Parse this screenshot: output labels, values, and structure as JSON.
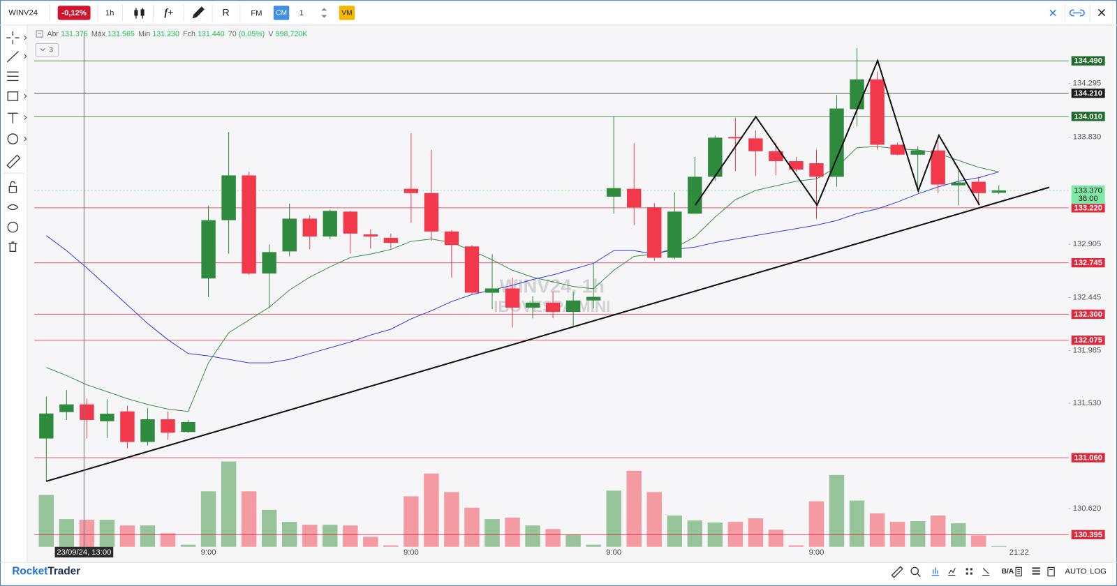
{
  "toolbar": {
    "symbol": "WINV24",
    "change": "-0,12%",
    "interval": "1h",
    "studies": "f+",
    "order_type": "R",
    "fm": "FM",
    "cm": "CM",
    "quantity": "1",
    "vm": "VM"
  },
  "legend": {
    "items": [
      {
        "label": "Abr",
        "value": "131.375"
      },
      {
        "label": "Máx",
        "value": "131.565"
      },
      {
        "label": "Min",
        "value": "131.230"
      },
      {
        "label": "Fch",
        "value": "131.440"
      },
      {
        "label": "70",
        "value": "(0,05%)"
      },
      {
        "label": "V",
        "value": "998,720K"
      }
    ],
    "indicator_count": "3"
  },
  "chart_data": {
    "type": "candlestick",
    "watermark": [
      "WINV24, 1h",
      "IBOVESPA MINI"
    ],
    "categories": [
      null,
      null,
      null,
      null,
      null,
      null,
      null,
      null,
      "9:00",
      null,
      null,
      null,
      null,
      null,
      null,
      null,
      null,
      null,
      "9:00",
      null,
      null,
      null,
      null,
      null,
      null,
      null,
      null,
      null,
      "9:00",
      null,
      null,
      null,
      null,
      null,
      null,
      null,
      null,
      null,
      "9:00",
      null,
      null,
      null,
      null,
      null,
      null,
      null,
      null,
      null
    ],
    "end_time": "21:22",
    "crosshair_label": "23/09/24, 13:00",
    "open": [
      131.226,
      131.454,
      131.521,
      131.375,
      131.46,
      131.196,
      131.392,
      131.282,
      132.609,
      133.113,
      133.5,
      132.652,
      132.843,
      133.126,
      132.972,
      133.187,
      132.99,
      132.96,
      133.384,
      133.347,
      133.015,
      132.886,
      132.486,
      132.523,
      132.357,
      132.4,
      132.32,
      132.419,
      133.316,
      133.384,
      133.224,
      132.788,
      133.169,
      133.488,
      133.832,
      133.82,
      133.709,
      133.623,
      133.605,
      133.488,
      134.072,
      134.33,
      133.765,
      133.679,
      133.716,
      133.414,
      133.445,
      133.35
    ],
    "high": [
      131.589,
      131.644,
      131.571,
      131.565,
      131.509,
      131.491,
      131.46,
      131.386,
      133.236,
      133.875,
      133.531,
      132.904,
      133.255,
      133.156,
      133.205,
      133.193,
      133.033,
      132.997,
      133.863,
      133.722,
      133.027,
      132.898,
      132.818,
      132.615,
      132.456,
      132.493,
      132.493,
      132.738,
      134.011,
      133.777,
      133.261,
      133.353,
      133.66,
      133.845,
      133.998,
      133.888,
      133.783,
      133.66,
      133.722,
      134.195,
      134.601,
      134.398,
      133.783,
      133.752,
      133.796,
      133.537,
      133.488,
      133.414
    ],
    "low": [
      130.858,
      131.386,
      131.226,
      131.23,
      131.14,
      131.165,
      131.214,
      131.276,
      132.45,
      132.824,
      132.64,
      132.351,
      132.8,
      132.861,
      132.947,
      132.824,
      132.867,
      132.867,
      133.089,
      132.935,
      132.615,
      132.474,
      132.345,
      132.185,
      132.265,
      132.265,
      132.198,
      132.351,
      133.169,
      133.07,
      132.763,
      132.775,
      133.169,
      133.451,
      133.537,
      133.494,
      133.5,
      133.531,
      133.126,
      133.402,
      133.925,
      133.722,
      133.673,
      133.384,
      133.347,
      133.242,
      133.242,
      133.341
    ],
    "close": [
      131.442,
      131.521,
      131.386,
      131.44,
      131.196,
      131.392,
      131.276,
      131.368,
      133.113,
      133.5,
      132.652,
      132.837,
      133.126,
      132.972,
      133.193,
      132.997,
      132.972,
      132.917,
      133.347,
      133.015,
      132.898,
      132.486,
      132.523,
      132.357,
      132.4,
      132.32,
      132.419,
      132.45,
      133.39,
      133.224,
      132.788,
      133.187,
      133.488,
      133.826,
      133.82,
      133.709,
      133.623,
      133.55,
      133.488,
      134.078,
      134.33,
      133.765,
      133.679,
      133.716,
      133.421,
      133.439,
      133.347,
      133.37
    ],
    "volume": [
      1918000,
      1025000,
      999000,
      998720,
      788000,
      788000,
      499000,
      79000,
      2050000,
      3154000,
      2050000,
      1367000,
      920000,
      815000,
      815000,
      788000,
      368000,
      53000,
      1866000,
      2707000,
      2024000,
      1445000,
      1025000,
      1077000,
      788000,
      657000,
      447000,
      79000,
      2076000,
      2812000,
      2024000,
      1156000,
      972000,
      894000,
      920000,
      1051000,
      631000,
      53000,
      1682000,
      2654000,
      1708000,
      1235000,
      920000,
      946000,
      1156000,
      867000,
      420000,
      26000
    ],
    "up_color": "#2e8b3e",
    "down_color": "#f2394b",
    "volume_up_color": "#98c49b",
    "volume_down_color": "#f39aa2",
    "moving_averages": [
      {
        "color": "#3a8f4e",
        "values": [
          131.84,
          131.77,
          131.69,
          131.63,
          131.57,
          131.52,
          131.48,
          131.46,
          131.88,
          132.14,
          132.25,
          132.36,
          132.51,
          132.62,
          132.71,
          132.79,
          132.82,
          132.86,
          132.93,
          132.95,
          132.92,
          132.85,
          132.77,
          132.68,
          132.62,
          132.58,
          132.54,
          132.52,
          132.68,
          132.8,
          132.82,
          132.87,
          132.97,
          133.14,
          133.29,
          133.37,
          133.41,
          133.45,
          133.47,
          133.57,
          133.74,
          133.75,
          133.73,
          133.72,
          133.69,
          133.63,
          133.57,
          133.53
        ]
      },
      {
        "color": "#2f3fe0",
        "values": [
          132.98,
          132.85,
          132.7,
          132.54,
          132.38,
          132.22,
          132.08,
          131.96,
          131.94,
          131.91,
          131.88,
          131.88,
          131.91,
          131.96,
          132.01,
          132.06,
          132.12,
          132.17,
          132.26,
          132.33,
          132.41,
          132.47,
          132.51,
          132.55,
          132.6,
          132.64,
          132.69,
          132.74,
          132.85,
          132.85,
          132.82,
          132.86,
          132.88,
          132.92,
          132.95,
          132.98,
          133.01,
          133.04,
          133.07,
          133.11,
          133.17,
          133.21,
          133.27,
          133.34,
          133.4,
          133.45,
          133.48,
          133.53
        ]
      }
    ],
    "ylim": [
      130.29,
      134.8
    ],
    "vlim": [
      0,
      3500000
    ],
    "yticks": [
      134.295,
      {
        "value": 133.83,
        "label": "133.830"
      },
      132.905,
      132.445,
      131.985,
      {
        "value": 131.53,
        "label": "131.530"
      },
      {
        "value": 130.62,
        "label": "130.620"
      }
    ],
    "levels": [
      {
        "value": 134.49,
        "label": "134.490",
        "color": "#1f6b2c"
      },
      {
        "value": 134.21,
        "label": "134.210",
        "color": "#1c1c1c"
      },
      {
        "value": 134.01,
        "label": "134.010",
        "color": "#1f6b2c"
      },
      {
        "value": 133.22,
        "label": "133.220",
        "color": "#e0283c"
      },
      {
        "value": 132.745,
        "label": "132.745",
        "color": "#e0283c"
      },
      {
        "value": 132.3,
        "label": "132.300",
        "color": "#e0283c"
      },
      {
        "value": 132.075,
        "label": "132.075",
        "color": "#e0283c"
      },
      {
        "value": 131.06,
        "label": "131.060",
        "color": "#e0283c"
      },
      {
        "value": 130.395,
        "label": "130.395",
        "color": "#e0283c"
      }
    ],
    "last_price": {
      "value": 133.37,
      "label": "133.370",
      "countdown": "38:00",
      "color": "#7ee8a6"
    }
  },
  "footer": {
    "brand_1": "Rocket",
    "brand_2": "Trader",
    "bid_ask": "B/A",
    "auto": "AUTO",
    "log": "LOG"
  }
}
